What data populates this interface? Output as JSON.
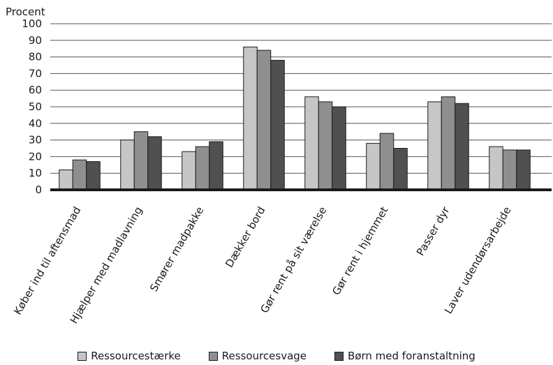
{
  "chart_data": {
    "type": "bar",
    "title": "",
    "ylabel": "Procent",
    "xlabel": "",
    "ylim": [
      0,
      100
    ],
    "yticks": [
      0,
      10,
      20,
      30,
      40,
      50,
      60,
      70,
      80,
      90,
      100
    ],
    "grid": true,
    "legend_position": "bottom",
    "categories": [
      "Køber ind til aftensmad",
      "Hjælper med madlavning",
      "Smører madpakke",
      "Dækker bord",
      "Gør rent på sit værelse",
      "Gør rent i hjemmet",
      "Passer dyr",
      "Laver udendørsarbejde"
    ],
    "series": [
      {
        "name": "Ressourcestærke",
        "color": "#c6c6c6",
        "values": [
          12,
          30,
          23,
          86,
          56,
          28,
          53,
          26
        ]
      },
      {
        "name": "Ressourcesvage",
        "color": "#8f8f8f",
        "values": [
          18,
          35,
          26,
          84,
          53,
          34,
          56,
          24
        ]
      },
      {
        "name": "Børn med foranstaltning",
        "color": "#505050",
        "values": [
          17,
          32,
          29,
          78,
          50,
          25,
          52,
          24
        ]
      }
    ]
  }
}
